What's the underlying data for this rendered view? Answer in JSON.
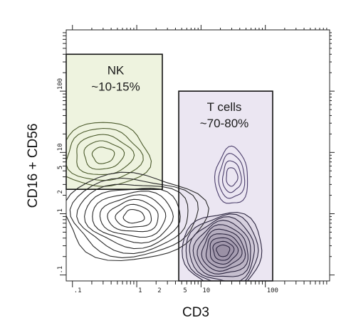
{
  "chart_data": {
    "type": "contour",
    "xlabel": "CD3",
    "ylabel": "CD16 + CD56",
    "x_scale": "log",
    "y_scale": "log",
    "xlim": [
      0.08,
      1000
    ],
    "ylim": [
      0.08,
      1000
    ],
    "x_tick_labels": [
      {
        "value": 0.1,
        "label": ".1"
      },
      {
        "value": 1,
        "label": "1"
      },
      {
        "value": 2,
        "label": "2"
      },
      {
        "value": 5,
        "label": "5"
      },
      {
        "value": 10,
        "label": "10"
      },
      {
        "value": 100,
        "label": "100"
      }
    ],
    "y_tick_labels": [
      {
        "value": 0.1,
        "label": ".1"
      },
      {
        "value": 1,
        "label": "1"
      },
      {
        "value": 2,
        "label": "2"
      },
      {
        "value": 5,
        "label": "5"
      },
      {
        "value": 10,
        "label": "10"
      },
      {
        "value": 100,
        "label": "100"
      }
    ],
    "gates": [
      {
        "name": "NK",
        "label": "NK",
        "percent": "~10-15%",
        "x_range": [
          0.08,
          2.5
        ],
        "y_range": [
          2.5,
          400
        ],
        "fill": "#eef3df"
      },
      {
        "name": "T cells",
        "label": "T cells",
        "percent": "~70-80%",
        "x_range": [
          4.5,
          130
        ],
        "y_range": [
          0.08,
          100
        ],
        "fill": "#ebe6f2"
      }
    ],
    "populations": [
      {
        "name": "nk",
        "center": [
          0.3,
          9
        ],
        "color": "#4b5a2c",
        "levels": 5
      },
      {
        "name": "negative",
        "center": [
          0.9,
          0.9
        ],
        "color": "#2a2a2a",
        "levels": 9
      },
      {
        "name": "t-cells",
        "center": [
          22,
          0.25
        ],
        "color": "#2c2640",
        "levels": 10
      },
      {
        "name": "t-cells-upper",
        "center": [
          30,
          4
        ],
        "color": "#4a3d6a",
        "levels": 4
      }
    ]
  },
  "colors": {
    "axis": "#222222",
    "contour_negative": "#2a2a2a",
    "contour_nk": "#4b5a2c",
    "contour_t": "#2c2640"
  }
}
